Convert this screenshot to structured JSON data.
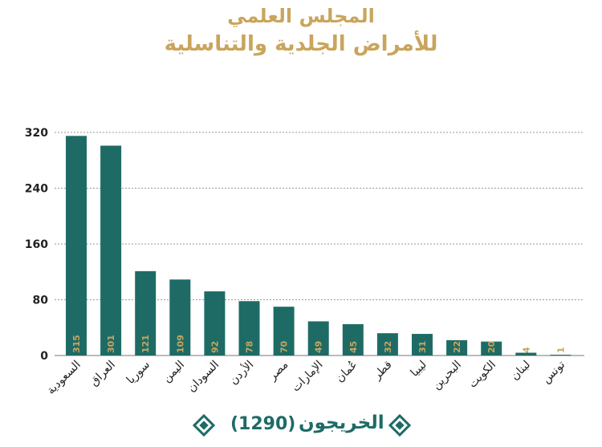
{
  "title_line1": "المجلس العلمي",
  "title_line2": "للأمراض الجلدية والتناسلية",
  "legend": {
    "name": "الخريجون",
    "total": "(1290)"
  },
  "colors": {
    "bar": "#1e6b66",
    "label": "#c9a55c",
    "title": "#c9a55c"
  },
  "chart_data": {
    "type": "bar",
    "categories": [
      "السعودية",
      "العراق",
      "سوريا",
      "اليمن",
      "السودان",
      "الأردن",
      "مصر",
      "الإمارات",
      "عُمان",
      "قطر",
      "ليبيا",
      "البحرين",
      "الكويت",
      "لبنان",
      "تونس"
    ],
    "values": [
      315,
      301,
      121,
      109,
      92,
      78,
      70,
      49,
      45,
      32,
      31,
      22,
      20,
      4,
      1
    ],
    "ylim": [
      0,
      320
    ],
    "yticks": [
      0,
      80,
      160,
      240,
      320
    ],
    "grid": true,
    "legend_position": "bottom"
  }
}
